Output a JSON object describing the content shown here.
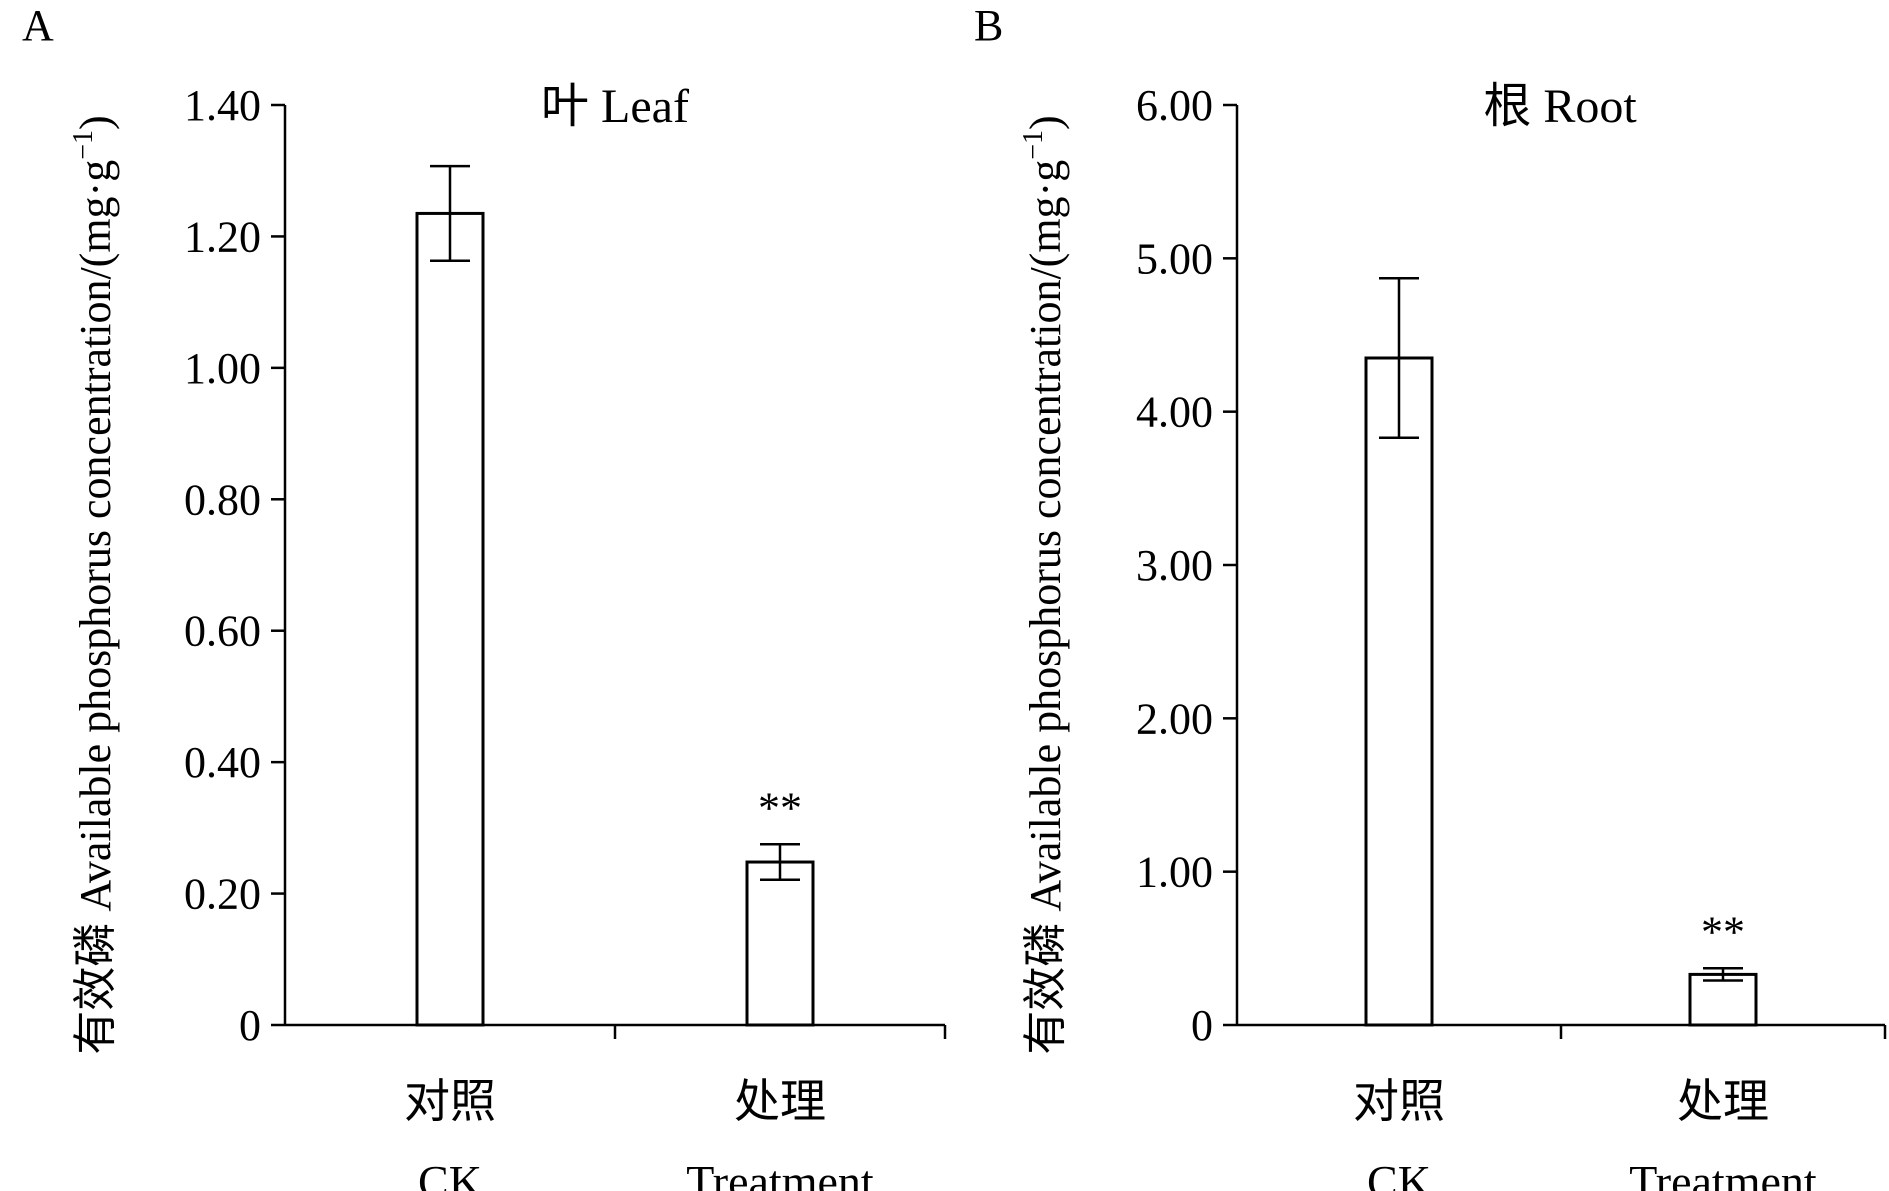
{
  "chart_data": [
    {
      "panel_label": "A",
      "type": "bar",
      "title": "叶  Leaf",
      "ylabel": "有效磷 Available phosphorus concentration/(mg·g⁻¹)",
      "ylabel_parts": {
        "cn": "有效磷",
        "en": "Available phosphorus concentration/(mg·g",
        "sup": "−1",
        "close": ")"
      },
      "categories": [
        {
          "cn": "对照",
          "en": "CK"
        },
        {
          "cn": "处理",
          "en": "Treatment"
        }
      ],
      "values": [
        1.235,
        0.248
      ],
      "errors": [
        0.072,
        0.027
      ],
      "annotations": [
        "",
        "**"
      ],
      "ylim": [
        0,
        1.4
      ],
      "yticks": [
        0,
        0.2,
        0.4,
        0.6,
        0.8,
        1.0,
        1.2,
        1.4
      ],
      "ytick_labels": [
        "0",
        "0.20",
        "0.40",
        "0.60",
        "0.80",
        "1.00",
        "1.20",
        "1.40"
      ],
      "bar_fill": "#ffffff",
      "bar_stroke": "#000000",
      "grid": false
    },
    {
      "panel_label": "B",
      "type": "bar",
      "title": "根  Root",
      "ylabel": "有效磷 Available phosphorus concentration/(mg·g⁻¹)",
      "ylabel_parts": {
        "cn": "有效磷",
        "en": "Available phosphorus concentration/(mg·g",
        "sup": "−1",
        "close": ")"
      },
      "categories": [
        {
          "cn": "对照",
          "en": "CK"
        },
        {
          "cn": "处理",
          "en": "Treatment"
        }
      ],
      "values": [
        4.35,
        0.33
      ],
      "errors": [
        0.52,
        0.04
      ],
      "annotations": [
        "",
        "**"
      ],
      "ylim": [
        0,
        6.0
      ],
      "yticks": [
        0,
        1,
        2,
        3,
        4,
        5,
        6
      ],
      "ytick_labels": [
        "0",
        "1.00",
        "2.00",
        "3.00",
        "4.00",
        "5.00",
        "6.00"
      ],
      "bar_fill": "#ffffff",
      "bar_stroke": "#000000",
      "grid": false
    }
  ]
}
